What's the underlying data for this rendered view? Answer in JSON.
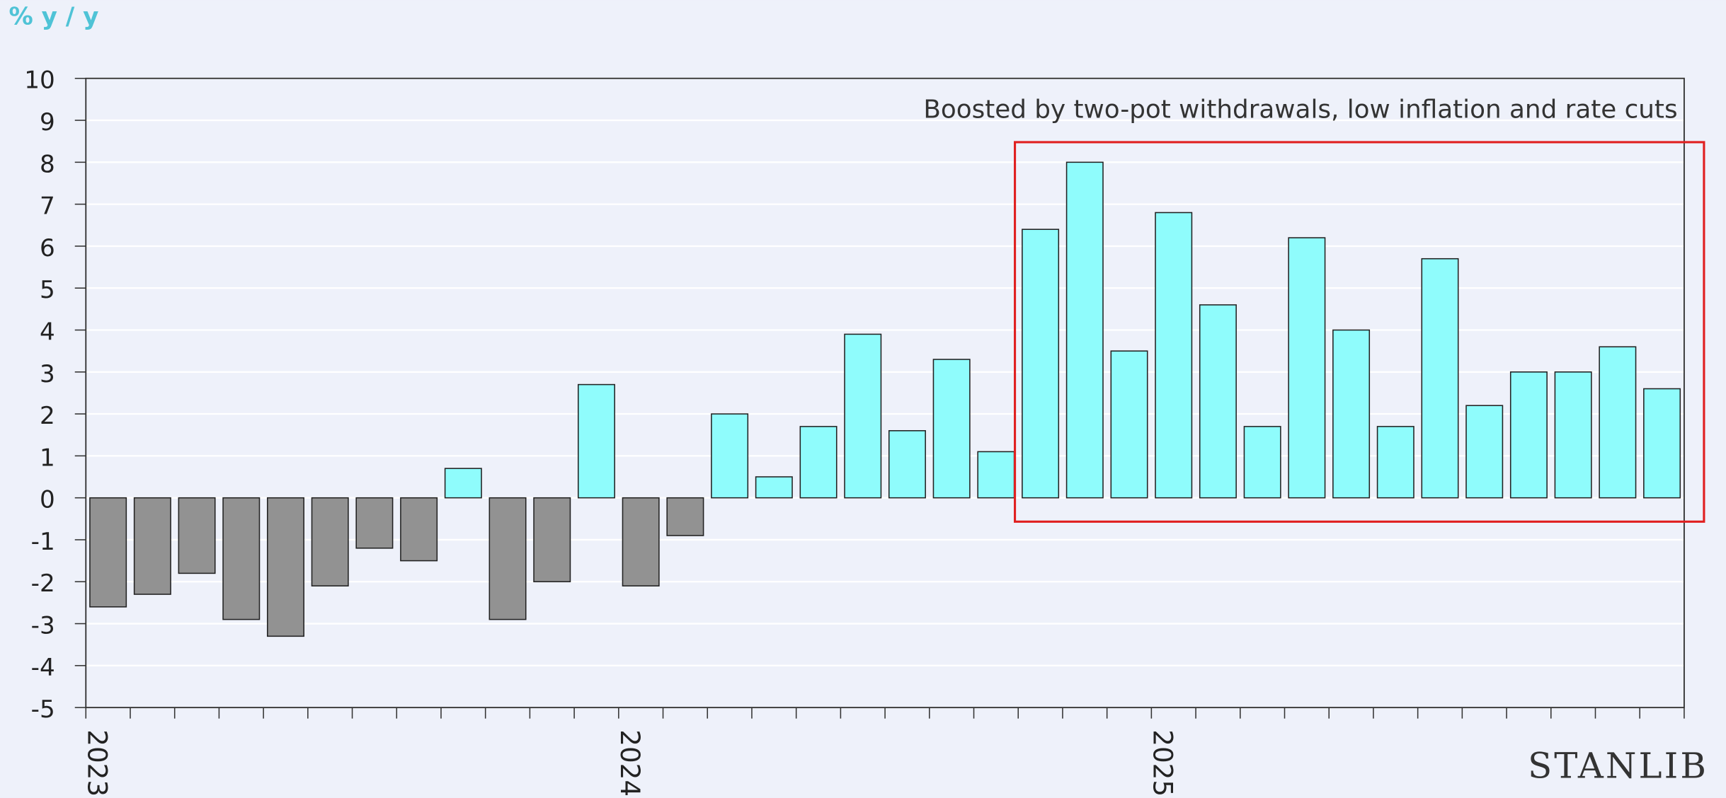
{
  "chart_data": {
    "type": "bar",
    "y_label": "% y / y",
    "annotation": "Boosted by two-pot withdrawals, low inflation and rate cuts",
    "brand": "STANLIB",
    "categories": [
      "2023",
      null,
      null,
      null,
      null,
      null,
      null,
      null,
      null,
      null,
      null,
      null,
      "2024",
      null,
      null,
      null,
      null,
      null,
      null,
      null,
      null,
      null,
      null,
      null,
      "2025",
      null,
      null,
      null,
      null,
      null,
      null,
      null,
      null,
      null,
      null,
      null
    ],
    "values": [
      -2.6,
      -2.3,
      -1.8,
      -2.9,
      -3.3,
      -2.1,
      -1.2,
      -1.5,
      0.7,
      -2.9,
      -2.0,
      2.7,
      -2.1,
      -0.9,
      2.0,
      0.5,
      1.7,
      3.9,
      1.6,
      3.3,
      1.1,
      6.4,
      8.0,
      3.5,
      6.8,
      4.6,
      1.7,
      6.2,
      4.0,
      1.7,
      5.7,
      2.2,
      3.0,
      3.0,
      3.6,
      2.6
    ],
    "color": "#8ffcfc",
    "negative_color": "#929292",
    "ylim": [
      -5,
      10
    ],
    "yticks": [
      -5,
      -4,
      -3,
      -2,
      -1,
      0,
      1,
      2,
      3,
      4,
      5,
      6,
      7,
      8,
      9,
      10
    ],
    "grid": true
  }
}
